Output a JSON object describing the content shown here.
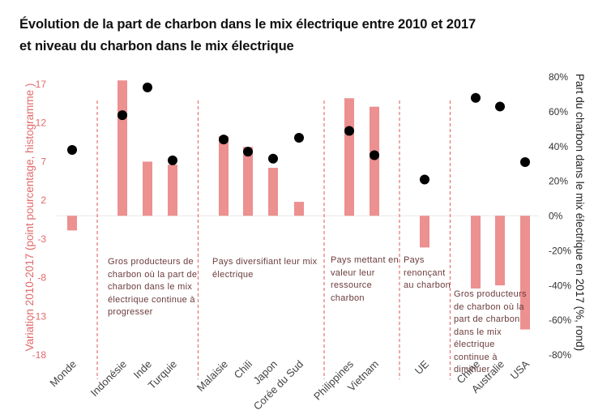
{
  "chart_data": {
    "type": "bar",
    "title": "Évolution de la part de charbon dans le mix électrique entre 2010 et 2017",
    "subtitle": "et niveau du charbon dans le mix électrique",
    "categories": [
      "Monde",
      "Indonésie",
      "Inde",
      "Turquie",
      "Malaisie",
      "Chili",
      "Japon",
      "Corée du Sud",
      "Philippines",
      "Vietnam",
      "UE",
      "Chine",
      "Australie",
      "USA"
    ],
    "series": [
      {
        "name": "Variation 2010-2017 (point pourcentage, histogramme)",
        "type": "bar",
        "axis": "left",
        "color": "#ec9090",
        "values": [
          -1.9,
          17.5,
          7.0,
          6.6,
          10.3,
          8.9,
          6.2,
          1.8,
          15.2,
          14.1,
          -4.1,
          -9.4,
          -9.0,
          -14.7
        ]
      },
      {
        "name": "Part du charbon dans le mix électrique en 2017 (%, rond)",
        "type": "scatter",
        "axis": "right",
        "color": "#000000",
        "values": [
          38,
          58,
          74,
          32,
          44,
          37,
          33,
          45,
          49,
          35,
          21,
          68,
          63,
          31
        ]
      }
    ],
    "ylabel": "Variation  2010-2017  (point pourcentage, histogramme )",
    "ylabel_right": "Part du charbon dans le mix électrique en 2017 (%, rond)",
    "ylim": [
      -18,
      17
    ],
    "yticks": [
      "17",
      "12",
      "7",
      "2",
      "-3",
      "-8",
      "-13",
      "-18"
    ],
    "ytick_values": [
      17,
      12,
      7,
      2,
      -3,
      -8,
      -13,
      -18
    ],
    "ylim_right": [
      -80,
      80
    ],
    "yticks_right": [
      "80%",
      "60%",
      "40%",
      "20%",
      "0%",
      "-20%",
      "-40%",
      "-60%",
      "-80%"
    ],
    "ytick_values_right": [
      80,
      60,
      40,
      20,
      0,
      -20,
      -40,
      -60,
      -80
    ],
    "grid": false,
    "legend": "none",
    "group_separators_after_index": [
      0,
      3,
      7,
      9,
      10
    ],
    "groups": [
      {
        "label": "Gros producteurs de charbon où la part de charbon dans le mix électrique continue à progresser",
        "lines": [
          "Gros producteurs de",
          "charbon où la part de",
          "charbon dans le mix",
          "électrique continue à",
          "progresser"
        ]
      },
      {
        "label": "Pays diversifiant leur mix électrique",
        "lines": [
          "Pays diversifiant leur mix",
          "électrique"
        ]
      },
      {
        "label": "Pays mettant en valeur leur ressource charbon",
        "lines": [
          "Pays mettant en",
          "valeur leur",
          "ressource",
          "charbon"
        ]
      },
      {
        "label": "Pays renonçant au charbon",
        "lines": [
          "Pays",
          "renonçant",
          "au charbon"
        ]
      },
      {
        "label": "Gros producteurs de charbon où la part de charbon dans le mix électrique continue à diminuer",
        "lines": [
          "Gros producteurs",
          "de charbon où la",
          "part de charbon",
          "dans le mix",
          "électrique",
          "continue à",
          "diminuer"
        ]
      }
    ]
  },
  "colors": {
    "bar": "#ec9090",
    "dot": "#000000",
    "separator": "#e57373",
    "left_axis": "#e26a6a"
  }
}
